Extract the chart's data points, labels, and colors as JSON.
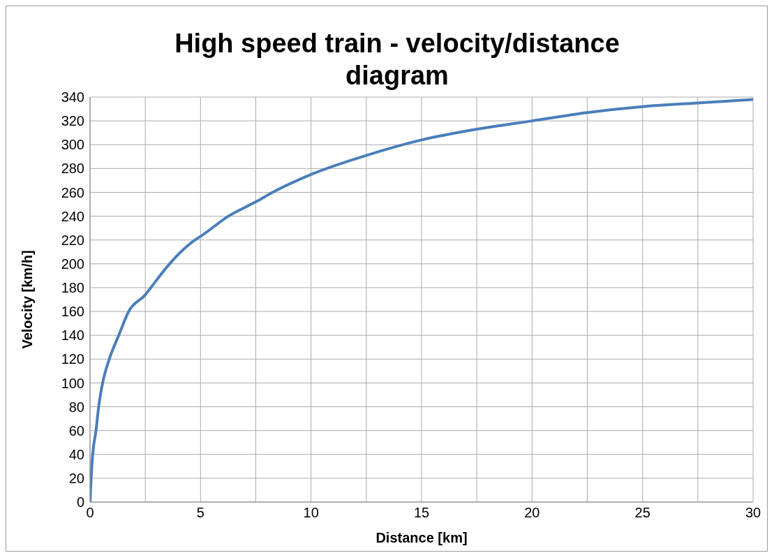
{
  "chart_data": {
    "type": "line",
    "title": "High speed train - velocity/distance diagram",
    "xlabel": "Distance [km]",
    "ylabel": "Velocity [km/h]",
    "x": [
      0,
      0.05,
      0.12,
      0.27,
      0.39,
      0.57,
      0.87,
      1.3,
      1.75,
      2.5,
      2.75,
      3.6,
      4.75,
      5,
      6.26,
      7.5,
      8.26,
      10,
      12.5,
      15,
      17.5,
      20,
      22.5,
      25,
      27.5,
      30
    ],
    "series": [
      {
        "color": "#4a7ebb",
        "values": [
          0,
          20,
          40,
          60,
          80,
          100,
          120,
          140,
          160,
          174,
          180,
          200,
          220,
          223,
          240,
          252,
          260,
          275,
          291,
          304,
          313,
          320,
          327,
          332,
          335,
          338
        ]
      }
    ],
    "xlim": [
      0,
      30
    ],
    "xticks": [
      0,
      5,
      10,
      15,
      20,
      25,
      30
    ],
    "ylim": [
      0,
      340
    ],
    "yticks": [
      0,
      20,
      40,
      60,
      80,
      100,
      120,
      140,
      160,
      180,
      200,
      220,
      240,
      260,
      280,
      300,
      320,
      340
    ],
    "grid": true,
    "legend": false,
    "marker": "none",
    "line_style": "solid"
  }
}
